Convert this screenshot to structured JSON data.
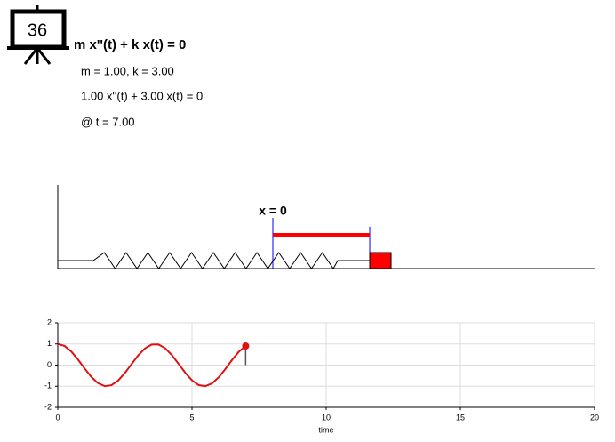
{
  "icon": {
    "label": "36"
  },
  "header": {
    "equation": "m x''(t) + k x(t) = 0",
    "params": "m = 1.00, k = 3.00",
    "instance": "1.00 x''(t) + 3.00 x(t) = 0",
    "time": "@ t = 7.00"
  },
  "diagram": {
    "origin_label": "x = 0"
  },
  "chart_data": {
    "type": "line",
    "x": [
      0,
      0.25,
      0.5,
      0.75,
      1,
      1.25,
      1.5,
      1.75,
      2,
      2.25,
      2.5,
      2.75,
      3,
      3.25,
      3.5,
      3.75,
      4,
      4.25,
      4.5,
      4.75,
      5,
      5.25,
      5.5,
      5.75,
      6,
      6.25,
      6.5,
      6.75,
      7
    ],
    "series": [
      {
        "color": "#e01010",
        "values": [
          1,
          0.908,
          0.648,
          0.268,
          -0.161,
          -0.561,
          -0.856,
          -0.994,
          -0.95,
          -0.729,
          -0.373,
          0.05,
          0.466,
          0.794,
          0.975,
          0.977,
          0.8,
          0.475,
          0.06,
          -0.364,
          -0.722,
          -0.947,
          -0.995,
          -0.862,
          -0.572,
          -0.173,
          0.257,
          0.64,
          0.904
        ]
      }
    ],
    "marker": {
      "x": 7,
      "y": 0.904
    },
    "xlabel": "time",
    "xlim": [
      0,
      20
    ],
    "ylim": [
      -2,
      2
    ],
    "xticks": [
      0,
      5,
      10,
      15,
      20
    ],
    "yticks": [
      -2,
      -1,
      0,
      1,
      2
    ],
    "grid": true
  }
}
